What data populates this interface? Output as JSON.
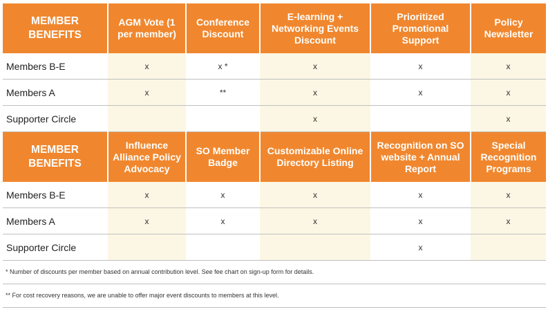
{
  "section1": {
    "headers": [
      "MEMBER BENEFITS",
      "AGM Vote (1 per member)",
      "Conference Discount",
      "E-learning + Networking Events Discount",
      "Prioritized Promotional Support",
      "Policy Newsletter"
    ],
    "rows": [
      {
        "label": "Members B-E",
        "cells": [
          "x",
          "x *",
          "x",
          "x",
          "x"
        ]
      },
      {
        "label": "Members A",
        "cells": [
          "x",
          "**",
          "x",
          "x",
          "x"
        ]
      },
      {
        "label": "Supporter Circle",
        "cells": [
          "",
          "",
          "x",
          "",
          "x"
        ]
      }
    ]
  },
  "section2": {
    "headers": [
      "MEMBER BENEFITS",
      "Influence Alliance Policy Advocacy",
      "SO Member Badge",
      "Customizable Online Directory Listing",
      "Recognition on SO website + Annual Report",
      "Special Recognition Programs"
    ],
    "rows": [
      {
        "label": "Members B-E",
        "cells": [
          "x",
          "x",
          "x",
          "x",
          "x"
        ]
      },
      {
        "label": "Members A",
        "cells": [
          "x",
          "x",
          "x",
          "x",
          "x"
        ]
      },
      {
        "label": "Supporter Circle",
        "cells": [
          "",
          "",
          "",
          "x",
          ""
        ]
      }
    ]
  },
  "footnotes": [
    "* Number of discounts per member based on annual contribution level. See fee chart on sign-up form for details.",
    "** For cost recovery reasons, we are unable to offer major event discounts to members at this level."
  ],
  "colors": {
    "header_orange": "#f0872e",
    "shaded_cell": "#fbf7e4",
    "row_border": "#bfbfbf"
  }
}
